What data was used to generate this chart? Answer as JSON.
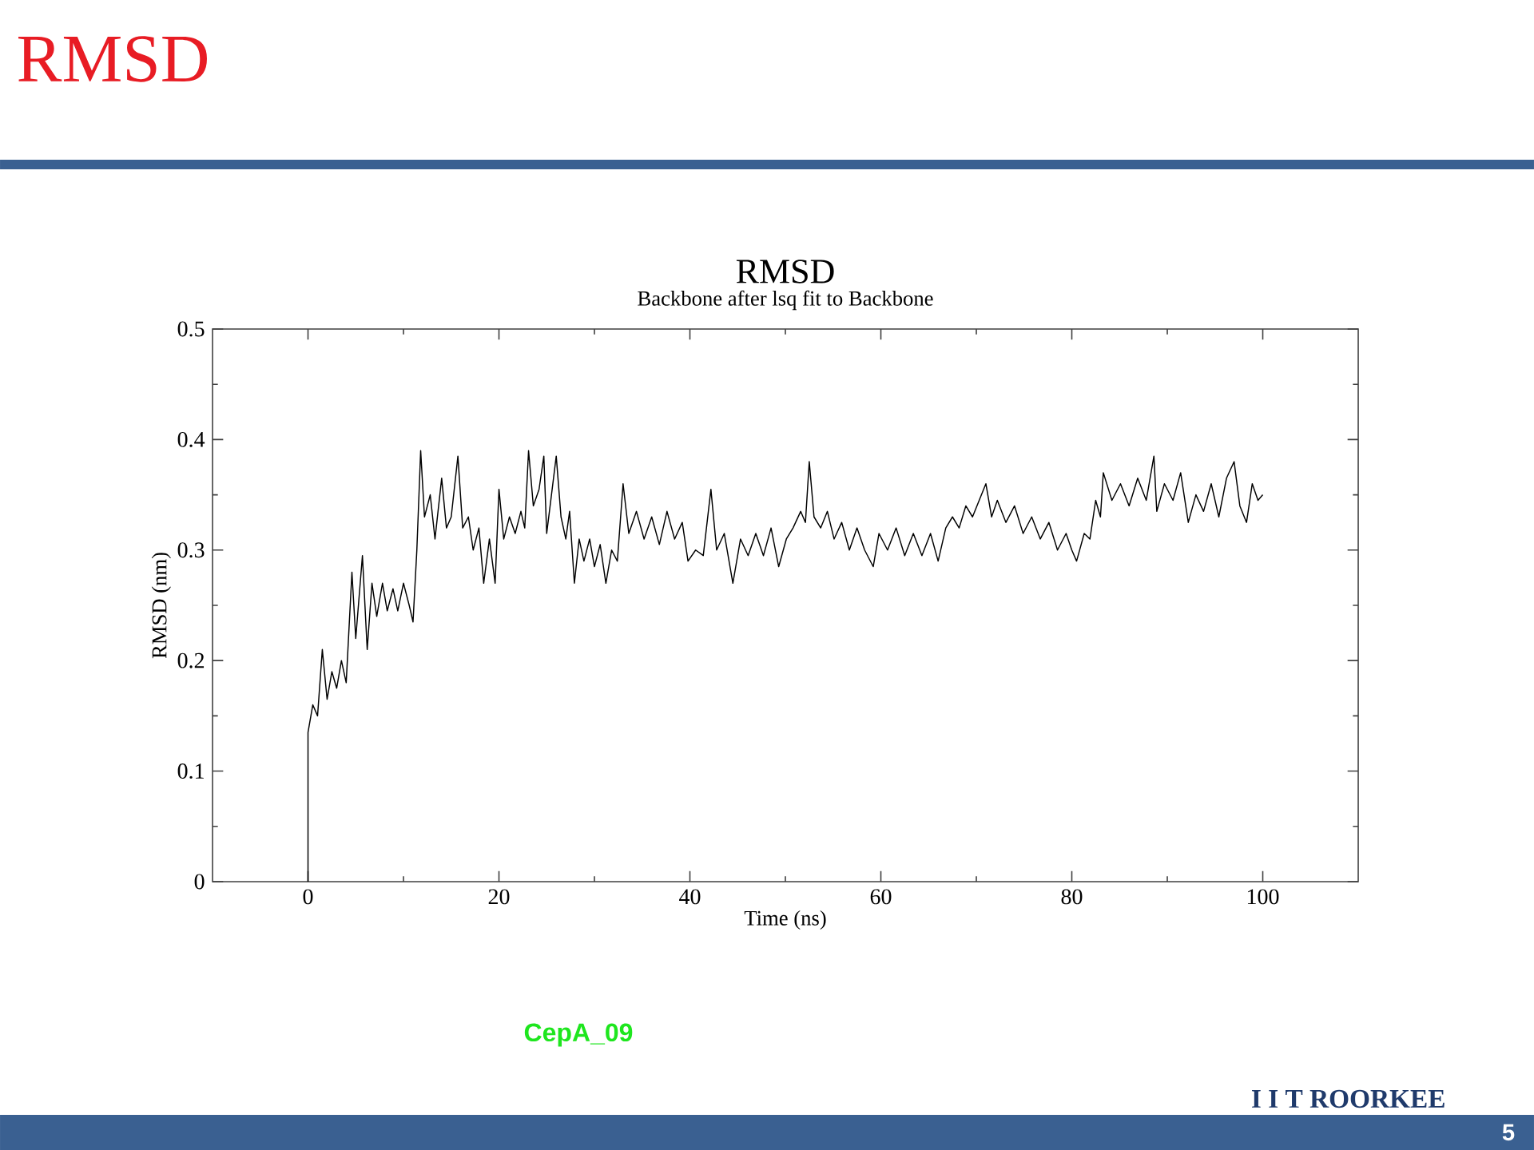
{
  "chart_data": {
    "type": "line",
    "title": "RMSD",
    "subtitle": "Backbone after lsq fit to Backbone",
    "xlabel": "Time (ns)",
    "ylabel": "RMSD (nm)",
    "x": [
      0,
      0,
      0.5,
      1.0,
      1.5,
      2.0,
      2.5,
      3.0,
      3.5,
      4.0,
      4.6,
      5.0,
      5.7,
      6.2,
      6.7,
      7.2,
      7.8,
      8.3,
      8.9,
      9.4,
      10.0,
      10.6,
      11.0,
      11.4,
      11.8,
      12.2,
      12.8,
      13.3,
      14.0,
      14.5,
      15.0,
      15.7,
      16.2,
      16.8,
      17.3,
      17.9,
      18.4,
      19.0,
      19.6,
      20.0,
      20.5,
      21.1,
      21.7,
      22.3,
      22.7,
      23.1,
      23.6,
      24.2,
      24.7,
      25.0,
      25.5,
      26.0,
      26.5,
      27.0,
      27.4,
      27.9,
      28.4,
      28.9,
      29.5,
      30.0,
      30.6,
      31.2,
      31.8,
      32.4,
      33.0,
      33.6,
      34.4,
      35.2,
      36.0,
      36.8,
      37.6,
      38.4,
      39.2,
      39.8,
      40.6,
      41.4,
      42.2,
      42.8,
      43.6,
      44.5,
      45.3,
      46.1,
      46.9,
      47.7,
      48.5,
      49.3,
      50.1,
      50.8,
      51.6,
      52.1,
      52.5,
      53.0,
      53.7,
      54.4,
      55.1,
      55.9,
      56.7,
      57.5,
      58.3,
      59.2,
      59.8,
      60.7,
      61.6,
      62.5,
      63.4,
      64.3,
      65.2,
      66.0,
      66.8,
      67.5,
      68.2,
      68.9,
      69.6,
      70.3,
      71.0,
      71.6,
      72.2,
      73.1,
      74.0,
      74.9,
      75.8,
      76.7,
      77.6,
      78.5,
      79.4,
      80.0,
      80.5,
      81.3,
      81.9,
      82.5,
      83.0,
      83.3,
      84.2,
      85.1,
      86.0,
      86.9,
      87.8,
      88.6,
      88.9,
      89.7,
      90.6,
      91.4,
      92.2,
      93.0,
      93.8,
      94.6,
      95.4,
      96.2,
      97.0,
      97.6,
      98.3,
      98.9,
      99.5,
      100.0
    ],
    "values": [
      0,
      0.135,
      0.16,
      0.15,
      0.21,
      0.165,
      0.19,
      0.175,
      0.2,
      0.18,
      0.28,
      0.22,
      0.295,
      0.21,
      0.27,
      0.24,
      0.27,
      0.245,
      0.265,
      0.245,
      0.27,
      0.25,
      0.235,
      0.3,
      0.39,
      0.33,
      0.35,
      0.31,
      0.365,
      0.32,
      0.33,
      0.385,
      0.32,
      0.33,
      0.3,
      0.32,
      0.27,
      0.31,
      0.27,
      0.355,
      0.31,
      0.33,
      0.315,
      0.335,
      0.32,
      0.39,
      0.34,
      0.355,
      0.385,
      0.315,
      0.35,
      0.385,
      0.33,
      0.31,
      0.335,
      0.27,
      0.31,
      0.29,
      0.31,
      0.285,
      0.305,
      0.27,
      0.3,
      0.29,
      0.36,
      0.315,
      0.335,
      0.31,
      0.33,
      0.305,
      0.335,
      0.31,
      0.325,
      0.29,
      0.3,
      0.295,
      0.355,
      0.3,
      0.315,
      0.27,
      0.31,
      0.295,
      0.315,
      0.295,
      0.32,
      0.285,
      0.31,
      0.32,
      0.335,
      0.325,
      0.38,
      0.33,
      0.32,
      0.335,
      0.31,
      0.325,
      0.3,
      0.32,
      0.3,
      0.285,
      0.315,
      0.3,
      0.32,
      0.295,
      0.315,
      0.295,
      0.315,
      0.29,
      0.32,
      0.33,
      0.32,
      0.34,
      0.33,
      0.345,
      0.36,
      0.33,
      0.345,
      0.325,
      0.34,
      0.315,
      0.33,
      0.31,
      0.325,
      0.3,
      0.315,
      0.3,
      0.29,
      0.315,
      0.31,
      0.345,
      0.33,
      0.37,
      0.345,
      0.36,
      0.34,
      0.365,
      0.345,
      0.385,
      0.335,
      0.36,
      0.345,
      0.37,
      0.325,
      0.35,
      0.335,
      0.36,
      0.33,
      0.365,
      0.38,
      0.34,
      0.325,
      0.36,
      0.345,
      0.35
    ],
    "color": "#000000",
    "xlim": [
      -10,
      110
    ],
    "ylim": [
      0,
      0.5
    ],
    "xticks": [
      0,
      20,
      40,
      60,
      80,
      100
    ],
    "yticks": [
      0,
      0.1,
      0.2,
      0.3,
      0.4,
      0.5
    ],
    "annotations": [
      "RMSD",
      "CepA_09",
      "I I T ROORKEE",
      "5"
    ]
  }
}
